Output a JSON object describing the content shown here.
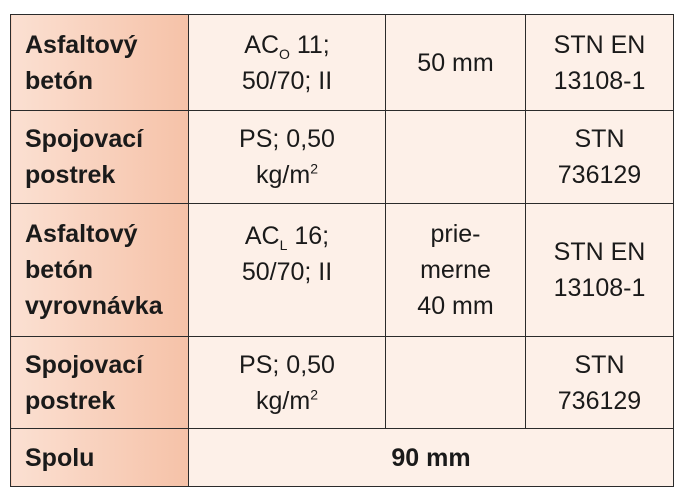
{
  "table": {
    "rows": [
      [
        [
          "Asfaltový",
          "betón"
        ],
        [
          {
            "text": "AC",
            "sub": "O",
            "tail": " 11;"
          },
          "50/70; II"
        ],
        [
          "50 mm"
        ],
        [
          "STN EN",
          "13108-1"
        ]
      ],
      [
        [
          "Spojovací",
          "postrek"
        ],
        [
          "PS; 0,50",
          {
            "text": "kg/m",
            "sup": "2"
          }
        ],
        [],
        [
          "STN",
          "736129"
        ]
      ],
      [
        [
          "Asfaltový",
          "betón",
          "vyrovnávka"
        ],
        [
          {
            "text": "AC",
            "sub": "L",
            "tail": " 16;"
          },
          "50/70; II"
        ],
        [
          "prie-",
          "merne",
          "40 mm"
        ],
        [
          "STN EN",
          "13108-1"
        ]
      ],
      [
        [
          "Spojovací",
          "postrek"
        ],
        [
          "PS; 0,50",
          {
            "text": "kg/m",
            "sup": "2"
          }
        ],
        [],
        [
          "STN",
          "736129"
        ]
      ],
      [
        [
          "Spolu"
        ],
        [
          "90 mm"
        ]
      ]
    ]
  }
}
